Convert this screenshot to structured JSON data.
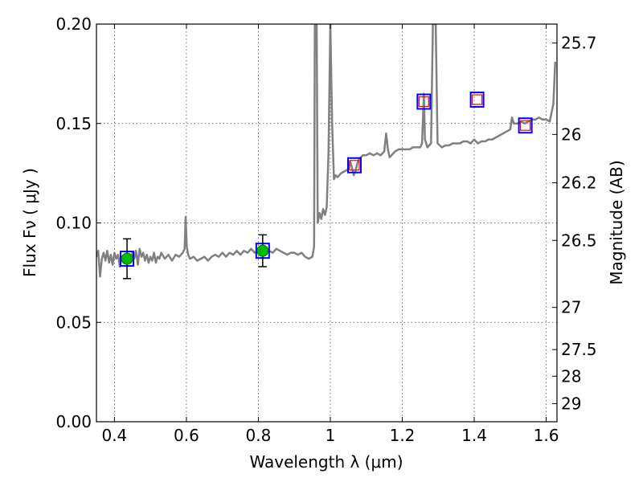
{
  "chart_data": {
    "type": "line",
    "xlabel": "Wavelength  λ (μm)",
    "ylabel": "Flux  Fν  ( μJy )",
    "ylabel_right": "Magnitude (AB)",
    "xlim": [
      0.35,
      1.63
    ],
    "ylim": [
      0.0,
      0.2
    ],
    "x_ticks": [
      0.4,
      0.6,
      0.8,
      1.0,
      1.2,
      1.4,
      1.6
    ],
    "x_tick_labels": [
      "0.4",
      "0.6",
      "0.8",
      "1",
      "1.2",
      "1.4",
      "1.6"
    ],
    "y_ticks": [
      0.0,
      0.05,
      0.1,
      0.15,
      0.2
    ],
    "y_tick_labels": [
      "0.00",
      "0.05",
      "0.10",
      "0.15",
      "0.20"
    ],
    "right_ticks": [
      {
        "label": "25.7",
        "flux": 0.1905
      },
      {
        "label": "26",
        "flux": 0.1445
      },
      {
        "label": "26.2",
        "flux": 0.1202
      },
      {
        "label": "26.5",
        "flux": 0.0912
      },
      {
        "label": "27",
        "flux": 0.0575
      },
      {
        "label": "27.5",
        "flux": 0.0363
      },
      {
        "label": "28",
        "flux": 0.0229
      },
      {
        "label": "29",
        "flux": 0.0091
      }
    ],
    "grid": true,
    "colors": {
      "spectrum": "#808080",
      "box": "#0000ff",
      "model_marker": "#ff0000",
      "detection": "#00bb00",
      "errorbar": "#000000"
    },
    "spectrum": [
      [
        0.35,
        0.083
      ],
      [
        0.355,
        0.086
      ],
      [
        0.36,
        0.073
      ],
      [
        0.365,
        0.082
      ],
      [
        0.37,
        0.085
      ],
      [
        0.375,
        0.081
      ],
      [
        0.38,
        0.086
      ],
      [
        0.385,
        0.08
      ],
      [
        0.39,
        0.084
      ],
      [
        0.395,
        0.079
      ],
      [
        0.4,
        0.085
      ],
      [
        0.405,
        0.082
      ],
      [
        0.41,
        0.084
      ],
      [
        0.415,
        0.078
      ],
      [
        0.42,
        0.083
      ],
      [
        0.425,
        0.08
      ],
      [
        0.43,
        0.084
      ],
      [
        0.435,
        0.081
      ],
      [
        0.44,
        0.083
      ],
      [
        0.445,
        0.08
      ],
      [
        0.45,
        0.085
      ],
      [
        0.455,
        0.082
      ],
      [
        0.46,
        0.086
      ],
      [
        0.465,
        0.079
      ],
      [
        0.47,
        0.087
      ],
      [
        0.475,
        0.083
      ],
      [
        0.48,
        0.085
      ],
      [
        0.485,
        0.081
      ],
      [
        0.49,
        0.084
      ],
      [
        0.495,
        0.08
      ],
      [
        0.5,
        0.083
      ],
      [
        0.505,
        0.081
      ],
      [
        0.51,
        0.085
      ],
      [
        0.515,
        0.08
      ],
      [
        0.52,
        0.083
      ],
      [
        0.525,
        0.082
      ],
      [
        0.53,
        0.085
      ],
      [
        0.54,
        0.082
      ],
      [
        0.55,
        0.084
      ],
      [
        0.56,
        0.081
      ],
      [
        0.57,
        0.084
      ],
      [
        0.58,
        0.083
      ],
      [
        0.59,
        0.085
      ],
      [
        0.595,
        0.087
      ],
      [
        0.598,
        0.103
      ],
      [
        0.601,
        0.088
      ],
      [
        0.605,
        0.084
      ],
      [
        0.61,
        0.082
      ],
      [
        0.62,
        0.083
      ],
      [
        0.63,
        0.081
      ],
      [
        0.64,
        0.082
      ],
      [
        0.65,
        0.083
      ],
      [
        0.66,
        0.081
      ],
      [
        0.67,
        0.083
      ],
      [
        0.68,
        0.084
      ],
      [
        0.69,
        0.083
      ],
      [
        0.7,
        0.085
      ],
      [
        0.71,
        0.083
      ],
      [
        0.72,
        0.085
      ],
      [
        0.73,
        0.084
      ],
      [
        0.74,
        0.086
      ],
      [
        0.75,
        0.084
      ],
      [
        0.76,
        0.086
      ],
      [
        0.77,
        0.085
      ],
      [
        0.78,
        0.087
      ],
      [
        0.79,
        0.085
      ],
      [
        0.8,
        0.086
      ],
      [
        0.81,
        0.086
      ],
      [
        0.82,
        0.087
      ],
      [
        0.83,
        0.086
      ],
      [
        0.84,
        0.085
      ],
      [
        0.85,
        0.087
      ],
      [
        0.86,
        0.086
      ],
      [
        0.87,
        0.085
      ],
      [
        0.88,
        0.084
      ],
      [
        0.89,
        0.085
      ],
      [
        0.9,
        0.085
      ],
      [
        0.91,
        0.084
      ],
      [
        0.92,
        0.085
      ],
      [
        0.93,
        0.083
      ],
      [
        0.94,
        0.082
      ],
      [
        0.95,
        0.083
      ],
      [
        0.955,
        0.088
      ],
      [
        0.957,
        0.2
      ],
      [
        0.962,
        0.2
      ],
      [
        0.965,
        0.1
      ],
      [
        0.97,
        0.105
      ],
      [
        0.975,
        0.102
      ],
      [
        0.98,
        0.107
      ],
      [
        0.985,
        0.104
      ],
      [
        0.99,
        0.108
      ],
      [
        0.995,
        0.135
      ],
      [
        1.0,
        0.2
      ],
      [
        1.005,
        0.15
      ],
      [
        1.01,
        0.122
      ],
      [
        1.015,
        0.124
      ],
      [
        1.02,
        0.123
      ],
      [
        1.025,
        0.124
      ],
      [
        1.03,
        0.125
      ],
      [
        1.04,
        0.126
      ],
      [
        1.05,
        0.127
      ],
      [
        1.055,
        0.131
      ],
      [
        1.06,
        0.128
      ],
      [
        1.065,
        0.124
      ],
      [
        1.07,
        0.126
      ],
      [
        1.075,
        0.13
      ],
      [
        1.08,
        0.132
      ],
      [
        1.085,
        0.133
      ],
      [
        1.09,
        0.134
      ],
      [
        1.1,
        0.134
      ],
      [
        1.11,
        0.135
      ],
      [
        1.12,
        0.134
      ],
      [
        1.13,
        0.135
      ],
      [
        1.14,
        0.134
      ],
      [
        1.15,
        0.136
      ],
      [
        1.155,
        0.145
      ],
      [
        1.16,
        0.137
      ],
      [
        1.165,
        0.133
      ],
      [
        1.17,
        0.134
      ],
      [
        1.18,
        0.136
      ],
      [
        1.19,
        0.137
      ],
      [
        1.2,
        0.137
      ],
      [
        1.21,
        0.137
      ],
      [
        1.22,
        0.137
      ],
      [
        1.23,
        0.138
      ],
      [
        1.24,
        0.138
      ],
      [
        1.25,
        0.138
      ],
      [
        1.255,
        0.14
      ],
      [
        1.26,
        0.165
      ],
      [
        1.263,
        0.142
      ],
      [
        1.27,
        0.138
      ],
      [
        1.28,
        0.14
      ],
      [
        1.285,
        0.2
      ],
      [
        1.293,
        0.2
      ],
      [
        1.298,
        0.14
      ],
      [
        1.31,
        0.138
      ],
      [
        1.32,
        0.139
      ],
      [
        1.33,
        0.139
      ],
      [
        1.34,
        0.14
      ],
      [
        1.35,
        0.14
      ],
      [
        1.36,
        0.14
      ],
      [
        1.37,
        0.141
      ],
      [
        1.38,
        0.141
      ],
      [
        1.39,
        0.14
      ],
      [
        1.4,
        0.142
      ],
      [
        1.41,
        0.14
      ],
      [
        1.42,
        0.141
      ],
      [
        1.43,
        0.141
      ],
      [
        1.44,
        0.142
      ],
      [
        1.45,
        0.142
      ],
      [
        1.46,
        0.143
      ],
      [
        1.47,
        0.144
      ],
      [
        1.48,
        0.145
      ],
      [
        1.49,
        0.146
      ],
      [
        1.5,
        0.147
      ],
      [
        1.505,
        0.153
      ],
      [
        1.51,
        0.15
      ],
      [
        1.52,
        0.15
      ],
      [
        1.53,
        0.151
      ],
      [
        1.54,
        0.15
      ],
      [
        1.55,
        0.151
      ],
      [
        1.56,
        0.152
      ],
      [
        1.57,
        0.152
      ],
      [
        1.58,
        0.153
      ],
      [
        1.59,
        0.152
      ],
      [
        1.6,
        0.152
      ],
      [
        1.61,
        0.151
      ],
      [
        1.62,
        0.16
      ],
      [
        1.625,
        0.181
      ]
    ],
    "detections": [
      {
        "x": 0.435,
        "y": 0.082,
        "yerr": 0.01
      },
      {
        "x": 0.812,
        "y": 0.086,
        "yerr": 0.008
      }
    ],
    "model_points": [
      {
        "x": 0.435,
        "y": 0.082,
        "marker": "box"
      },
      {
        "x": 0.812,
        "y": 0.086,
        "marker": "box"
      },
      {
        "x": 1.067,
        "y": 0.129,
        "marker": "box+red"
      },
      {
        "x": 1.26,
        "y": 0.161,
        "marker": "box+red"
      },
      {
        "x": 1.408,
        "y": 0.162,
        "marker": "box+red"
      },
      {
        "x": 1.542,
        "y": 0.149,
        "marker": "box+red"
      }
    ]
  }
}
